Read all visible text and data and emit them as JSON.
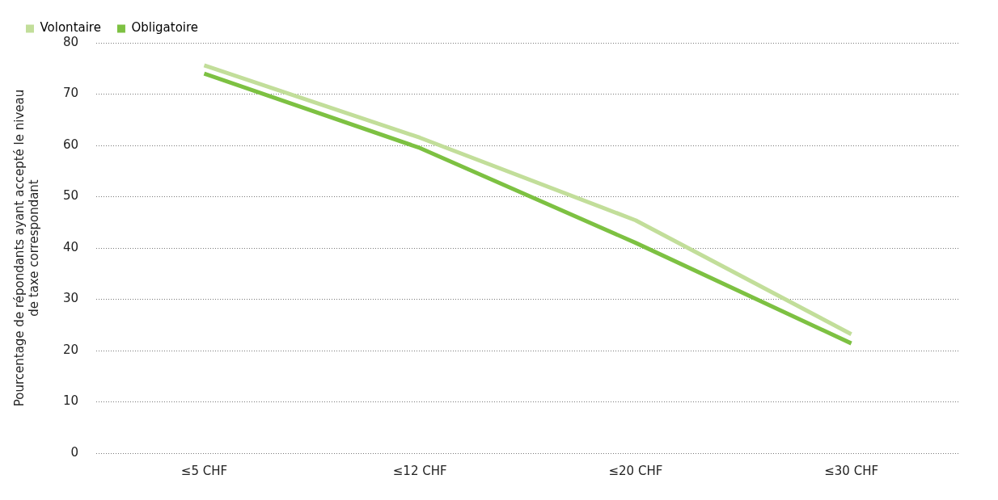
{
  "chart_data": {
    "type": "line",
    "ylabel": "Pourcentage de répondants ayant accepté le niveau\nde taxe correspondant",
    "categories": [
      "≤5 CHF",
      "≤12 CHF",
      "≤20 CHF",
      "≤30 CHF"
    ],
    "series": [
      {
        "name": "Volontaire",
        "color": "#c2de9a",
        "values": [
          75.6,
          61.5,
          45.4,
          23.2
        ]
      },
      {
        "name": "Obligatoire",
        "color": "#7dc142",
        "values": [
          74,
          59.5,
          41,
          21.4
        ]
      }
    ],
    "ylim": [
      0,
      80
    ],
    "yticks": [
      0,
      10,
      20,
      30,
      40,
      50,
      60,
      70,
      80
    ],
    "grid": "y",
    "legend": "top left",
    "marker": "none",
    "line_style": "solid"
  }
}
